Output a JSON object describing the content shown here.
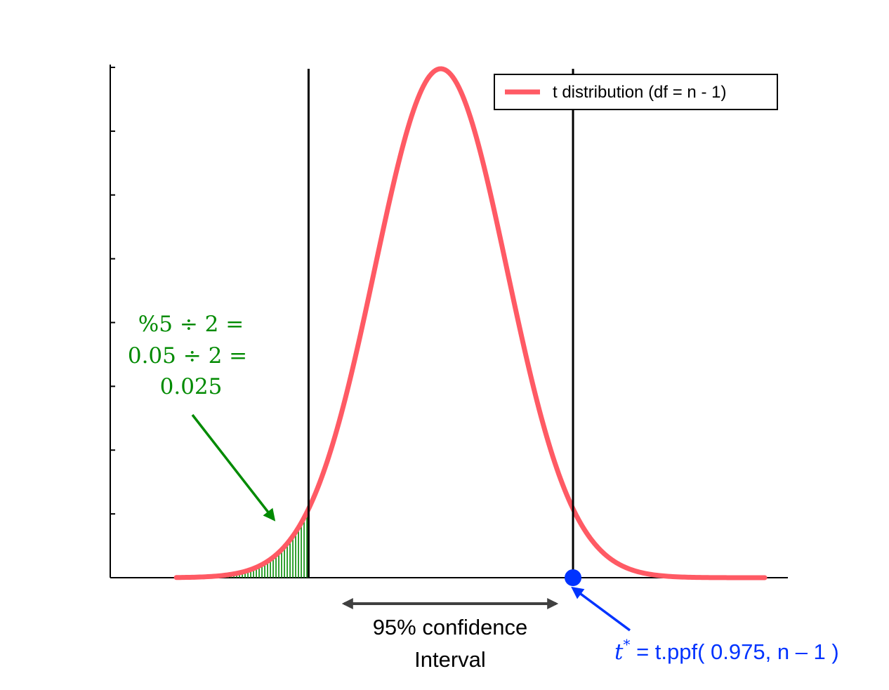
{
  "chart_data": {
    "type": "line",
    "title": "",
    "xlabel": "",
    "ylabel": "",
    "ylim": [
      0,
      0.4
    ],
    "xlim": [
      -5.0,
      5.25
    ],
    "grid": false,
    "legend": {
      "placement": "top-right"
    },
    "series": [
      {
        "name": "t distribution (df = n - 1)",
        "color": "#ff5a64",
        "function": "student-t pdf",
        "x": [
          -4,
          -3.5,
          -3,
          -2.5,
          -2,
          -1.5,
          -1,
          -0.5,
          0,
          0.5,
          1,
          1.5,
          2,
          2.5,
          3,
          3.5,
          4,
          4.5,
          5,
          5.2
        ],
        "y": [
          0.0002,
          0.0009,
          0.0044,
          0.0175,
          0.054,
          0.1295,
          0.242,
          0.352,
          0.399,
          0.352,
          0.242,
          0.1295,
          0.054,
          0.0175,
          0.0044,
          0.0009,
          0.0002,
          0.0,
          0.0,
          0.0
        ]
      }
    ],
    "critical_lines": {
      "lower": -2.0,
      "upper": 2.0,
      "color": "#000000"
    },
    "shaded_tail": {
      "from": -3.3,
      "to": -2.0,
      "color": "#008a00"
    },
    "critical_point": {
      "x": 2.0,
      "y": 0,
      "color": "#0033ff"
    },
    "y_ticks": [
      0,
      0.05,
      0.1,
      0.15,
      0.2,
      0.25,
      0.3,
      0.35,
      0.4
    ],
    "annotations": {
      "alpha_lines": [
        "%5  ÷ 2 =",
        "0.05  ÷ 2 =",
        "0.025"
      ],
      "alpha_color": "#008a00",
      "interval_lines": [
        "95% confidence",
        "Interval"
      ],
      "interval_color": "#404040",
      "tstar_symbol": "t",
      "tstar_superscript": "*",
      "tstar_expression": " = t.ppf( 0.975, n – 1 )",
      "tstar_color": "#0033ff"
    }
  }
}
